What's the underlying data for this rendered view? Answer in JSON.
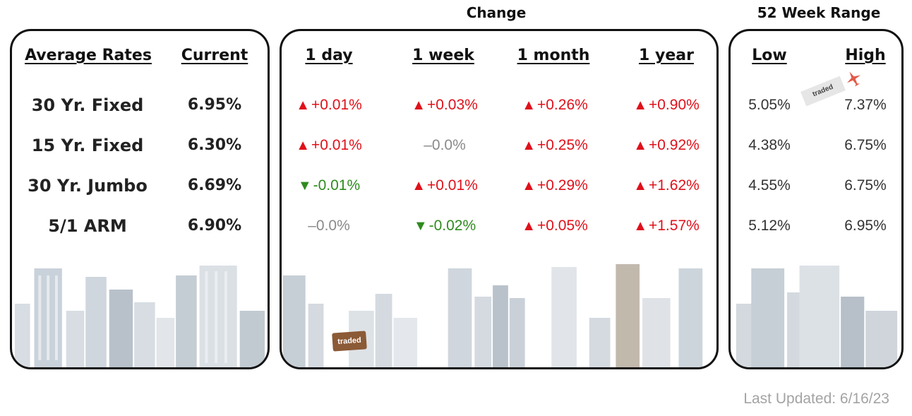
{
  "groups": {
    "change": "Change",
    "range": "52 Week Range"
  },
  "headers": {
    "average_rates": "Average Rates",
    "current": "Current",
    "day": "1 day",
    "week": "1 week",
    "month": "1 month",
    "year": "1 year",
    "low": "Low",
    "high": "High"
  },
  "rows": [
    {
      "label": "30 Yr. Fixed",
      "current": "6.95%",
      "day": {
        "dir": "up",
        "value": "+0.01%"
      },
      "week": {
        "dir": "up",
        "value": "+0.03%"
      },
      "month": {
        "dir": "up",
        "value": "+0.26%"
      },
      "year": {
        "dir": "up",
        "value": "+0.90%"
      },
      "low": "5.05%",
      "high": "7.37%"
    },
    {
      "label": "15 Yr. Fixed",
      "current": "6.30%",
      "day": {
        "dir": "up",
        "value": "+0.01%"
      },
      "week": {
        "dir": "flat",
        "value": "–0.0%"
      },
      "month": {
        "dir": "up",
        "value": "+0.25%"
      },
      "year": {
        "dir": "up",
        "value": "+0.92%"
      },
      "low": "4.38%",
      "high": "6.75%"
    },
    {
      "label": "30 Yr. Jumbo",
      "current": "6.69%",
      "day": {
        "dir": "down",
        "value": "-0.01%"
      },
      "week": {
        "dir": "up",
        "value": "+0.01%"
      },
      "month": {
        "dir": "up",
        "value": "+0.29%"
      },
      "year": {
        "dir": "up",
        "value": "+1.62%"
      },
      "low": "4.55%",
      "high": "6.75%"
    },
    {
      "label": "5/1 ARM",
      "current": "6.90%",
      "day": {
        "dir": "flat",
        "value": "–0.0%"
      },
      "week": {
        "dir": "down",
        "value": "-0.02%"
      },
      "month": {
        "dir": "up",
        "value": "+0.05%"
      },
      "year": {
        "dir": "up",
        "value": "+1.57%"
      },
      "low": "5.12%",
      "high": "6.95%"
    }
  ],
  "logo_text": "traded",
  "footer": {
    "last_updated": "Last Updated: 6/16/23"
  },
  "colors": {
    "up": "#e0101a",
    "down": "#2e8b1e",
    "flat": "#8a8a8a"
  }
}
